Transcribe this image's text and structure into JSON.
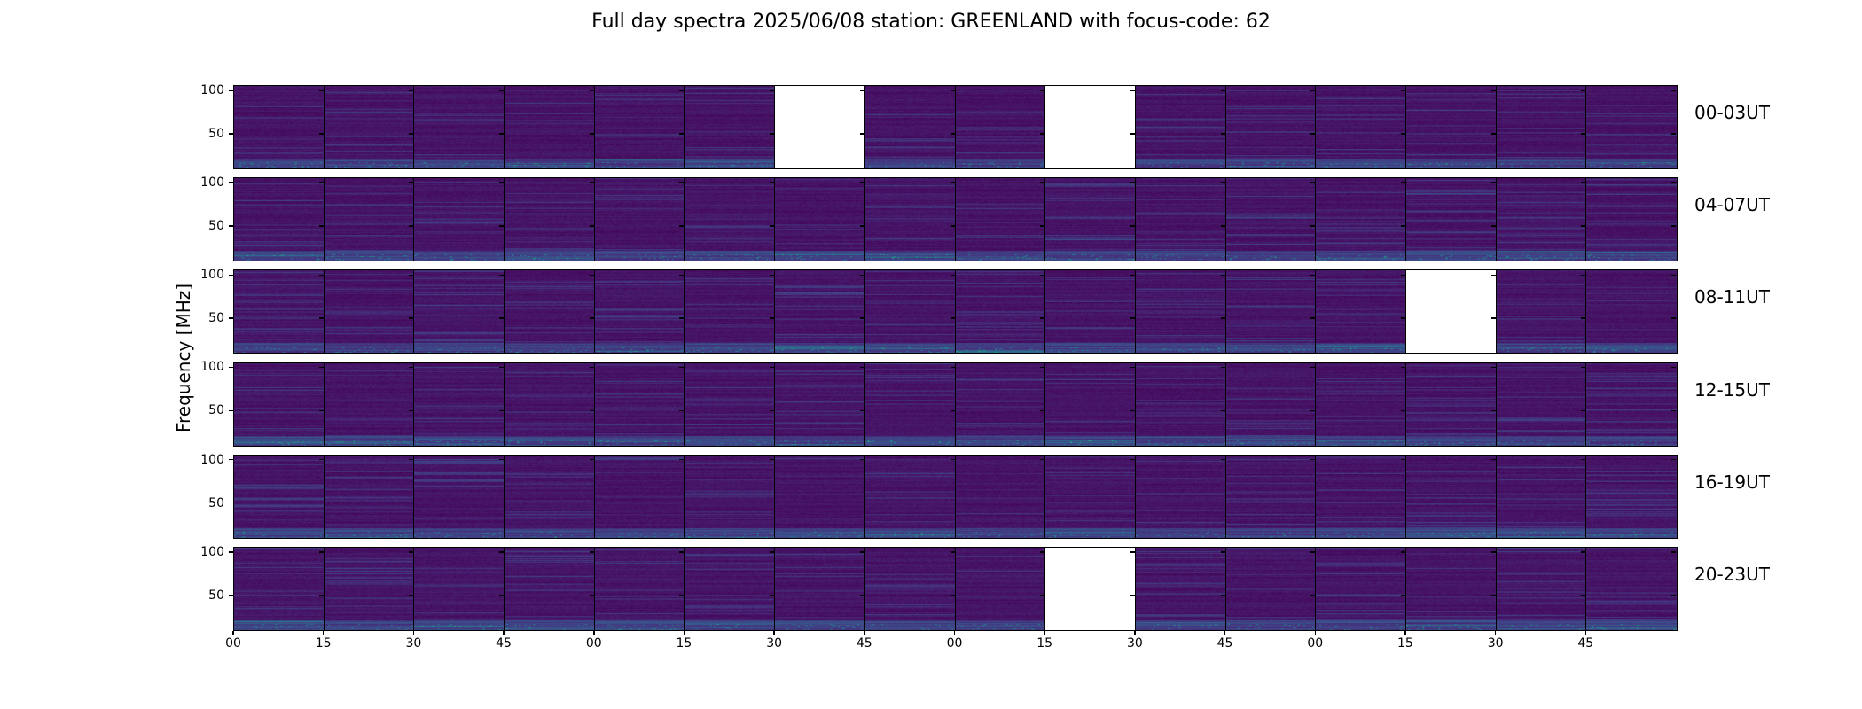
{
  "chart_data": {
    "type": "heatmap",
    "title": "Full day spectra 2025/06/08 station: GREENLAND with focus-code: 62",
    "ylabel": "Frequency [MHz]",
    "xlabel": "",
    "ylim": [
      9,
      106
    ],
    "y_ticks": [
      "100",
      "50"
    ],
    "y_tick_values": [
      100,
      50
    ],
    "x_tick_labels": [
      "00",
      "15",
      "30",
      "45",
      "00",
      "15",
      "30",
      "45",
      "00",
      "15",
      "30",
      "45",
      "00",
      "15",
      "30",
      "45"
    ],
    "row_labels": [
      "00-03UT",
      "04-07UT",
      "08-11UT",
      "12-15UT",
      "16-19UT",
      "20-23UT"
    ],
    "columns_per_row": 16,
    "colormap": "viridis",
    "missing_panels": [
      {
        "row": 0,
        "col": 6
      },
      {
        "row": 0,
        "col": 9
      },
      {
        "row": 2,
        "col": 13
      },
      {
        "row": 5,
        "col": 9
      }
    ]
  }
}
